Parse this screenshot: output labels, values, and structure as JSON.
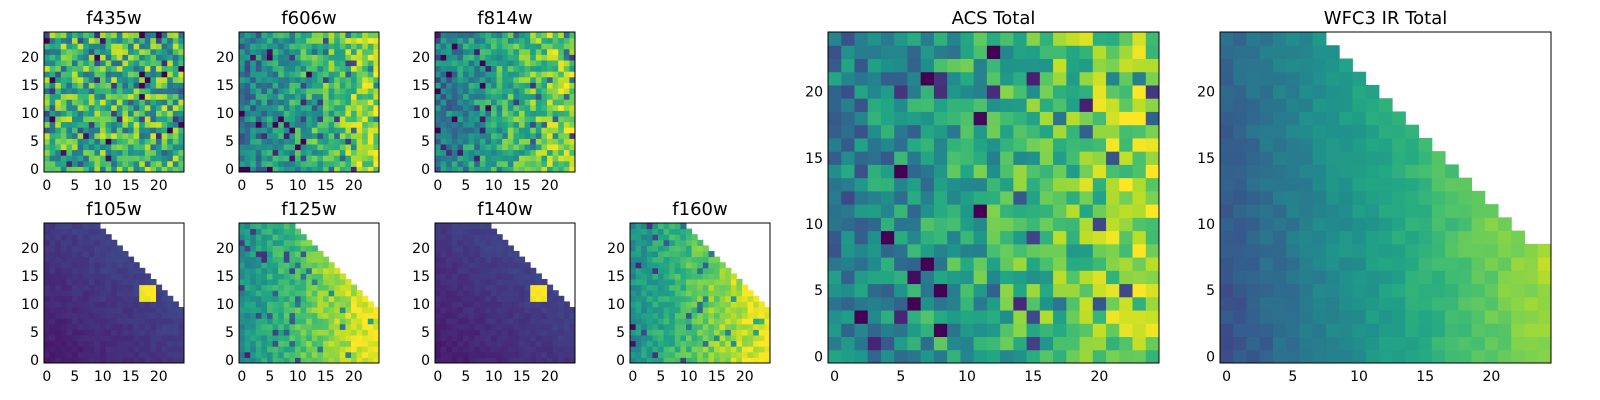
{
  "chart_data": [
    {
      "type": "heatmap",
      "title": "f435w",
      "grid": [
        25,
        25
      ],
      "xticks": [
        "0",
        "5",
        "10",
        "15",
        "20"
      ],
      "yticks": [
        "0",
        "5",
        "10",
        "15",
        "20"
      ],
      "pattern": "noise",
      "colormap": "viridis",
      "grid_lines": false
    },
    {
      "type": "heatmap",
      "title": "f606w",
      "grid": [
        25,
        25
      ],
      "xticks": [
        "0",
        "5",
        "10",
        "15",
        "20"
      ],
      "yticks": [
        "0",
        "5",
        "10",
        "15",
        "20"
      ],
      "pattern": "noise-gradient",
      "colormap": "viridis",
      "grid_lines": false
    },
    {
      "type": "heatmap",
      "title": "f814w",
      "grid": [
        25,
        25
      ],
      "xticks": [
        "0",
        "5",
        "10",
        "15",
        "20"
      ],
      "yticks": [
        "0",
        "5",
        "10",
        "15",
        "20"
      ],
      "pattern": "noise-gradient",
      "colormap": "viridis",
      "grid_lines": false
    },
    {
      "type": "heatmap",
      "title": "f105w",
      "grid": [
        25,
        25
      ],
      "xticks": [
        "0",
        "5",
        "10",
        "15",
        "20"
      ],
      "yticks": [
        "0",
        "5",
        "10",
        "15",
        "20"
      ],
      "pattern": "dark-triangle",
      "colormap": "viridis",
      "grid_lines": false
    },
    {
      "type": "heatmap",
      "title": "f125w",
      "grid": [
        25,
        25
      ],
      "xticks": [
        "0",
        "5",
        "10",
        "15",
        "20"
      ],
      "yticks": [
        "0",
        "5",
        "10",
        "15",
        "20"
      ],
      "pattern": "bright-triangle",
      "colormap": "viridis",
      "grid_lines": false
    },
    {
      "type": "heatmap",
      "title": "f140w",
      "grid": [
        25,
        25
      ],
      "xticks": [
        "0",
        "5",
        "10",
        "15",
        "20"
      ],
      "yticks": [
        "0",
        "5",
        "10",
        "15",
        "20"
      ],
      "pattern": "dark-triangle",
      "colormap": "viridis",
      "grid_lines": false
    },
    {
      "type": "heatmap",
      "title": "f160w",
      "grid": [
        25,
        25
      ],
      "xticks": [
        "0",
        "5",
        "10",
        "15",
        "20"
      ],
      "yticks": [
        "0",
        "5",
        "10",
        "15",
        "20"
      ],
      "pattern": "bright-triangle",
      "colormap": "viridis",
      "grid_lines": false
    },
    {
      "type": "heatmap",
      "title": "ACS Total",
      "grid": [
        25,
        25
      ],
      "xticks": [
        "0",
        "5",
        "10",
        "15",
        "20"
      ],
      "yticks": [
        "0",
        "5",
        "10",
        "15",
        "20"
      ],
      "pattern": "noise-gradient",
      "colormap": "viridis",
      "grid_lines": false
    },
    {
      "type": "heatmap",
      "title": "WFC3 IR Total",
      "grid": [
        25,
        25
      ],
      "xticks": [
        "0",
        "5",
        "10",
        "15",
        "20"
      ],
      "yticks": [
        "0",
        "5",
        "10",
        "15",
        "20"
      ],
      "pattern": "smooth-triangle",
      "colormap": "viridis",
      "grid_lines": false
    }
  ]
}
